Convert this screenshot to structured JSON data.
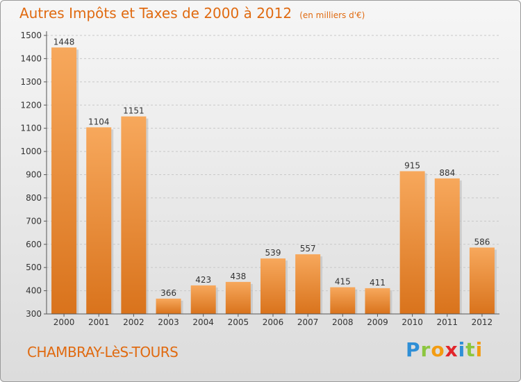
{
  "title": "Autres Impôts et Taxes de 2000 à 2012",
  "subtitle": "(en milliers d'€)",
  "location": "CHAMBRAY-LèS-TOURS",
  "logo": {
    "letters": [
      "P",
      "r",
      "o",
      "x",
      "i",
      "t",
      "i"
    ],
    "colors": [
      "#2f8fd6",
      "#8cc63f",
      "#f39c12",
      "#e2252b",
      "#2f8fd6",
      "#8cc63f",
      "#f39c12"
    ]
  },
  "colors": {
    "bar_top": "#f7a85c",
    "bar_bottom": "#d9731c",
    "text": "#e06a10"
  },
  "chart_data": {
    "type": "bar",
    "title": "Autres Impôts et Taxes de 2000 à 2012",
    "subtitle": "(en milliers d'€)",
    "categories": [
      "2000",
      "2001",
      "2002",
      "2003",
      "2004",
      "2005",
      "2006",
      "2007",
      "2008",
      "2009",
      "2010",
      "2011",
      "2012"
    ],
    "values": [
      1448,
      1104,
      1151,
      366,
      423,
      438,
      539,
      557,
      415,
      411,
      915,
      884,
      586
    ],
    "ylim": [
      300,
      1500
    ],
    "yticks": [
      300,
      400,
      500,
      600,
      700,
      800,
      900,
      1000,
      1100,
      1200,
      1300,
      1400,
      1500
    ],
    "grid": true
  }
}
